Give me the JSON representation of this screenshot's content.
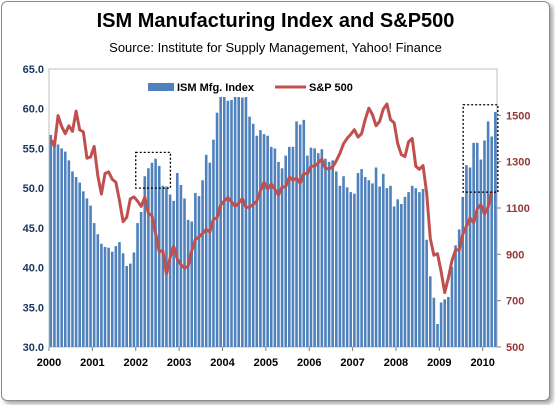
{
  "title": "ISM Manufacturing  Index and S&P500",
  "subtitle": "Source: Institute for Supply Management, Yahoo! Finance",
  "chart_data": {
    "type": "bar+line",
    "title": "ISM Manufacturing  Index and S&P500",
    "subtitle": "Source: Institute for Supply Management, Yahoo! Finance",
    "x_ticks": [
      "2000",
      "2001",
      "2002",
      "2003",
      "2004",
      "2005",
      "2006",
      "2007",
      "2008",
      "2009",
      "2010"
    ],
    "x_range": [
      2000.0,
      2010.33
    ],
    "y_left": {
      "range": [
        30,
        65
      ],
      "ticks": [
        "30.0",
        "35.0",
        "40.0",
        "45.0",
        "50.0",
        "55.0",
        "60.0",
        "65.0"
      ]
    },
    "y_right": {
      "range": [
        500,
        1700
      ],
      "ticks": [
        "500",
        "700",
        "900",
        "1100",
        "1300",
        "1500"
      ]
    },
    "legend": {
      "placement": "top",
      "entries": [
        "ISM Mfg. Index",
        "S&P 500"
      ]
    },
    "colors": {
      "bars": "#4f81bd",
      "line": "#c0504d",
      "left_axis_text": "#17375e",
      "right_axis_text": "#953735",
      "plot_border": "#bfbfbf"
    },
    "annotations": [
      {
        "type": "dashed-box",
        "x": [
          2002.0,
          2002.8
        ],
        "y_left": [
          50.0,
          54.5
        ]
      },
      {
        "type": "dashed-box",
        "x": [
          2009.55,
          2010.35
        ],
        "y_left": [
          49.5,
          60.5
        ]
      }
    ],
    "series": [
      {
        "name": "ISM Mfg. Index",
        "type": "bar",
        "axis": "left",
        "x_start": 2000.0,
        "x_step": 0.08333,
        "values": [
          56.7,
          56.1,
          55.5,
          55.0,
          54.6,
          53.5,
          52.1,
          51.4,
          50.7,
          49.6,
          48.7,
          47.8,
          45.6,
          44.2,
          43.0,
          42.6,
          42.5,
          42.0,
          42.7,
          43.2,
          41.8,
          40.2,
          40.5,
          41.9,
          45.6,
          47.0,
          51.5,
          52.5,
          53.2,
          53.7,
          52.8,
          50.3,
          50.2,
          49.2,
          48.4,
          51.9,
          50.4,
          48.7,
          46.0,
          45.8,
          49.4,
          49.0,
          51.0,
          54.2,
          53.2,
          56.1,
          59.5,
          62.5,
          62.0,
          61.0,
          61.1,
          62.0,
          61.5,
          61.4,
          61.6,
          59.0,
          58.1,
          56.6,
          57.3,
          56.8,
          56.6,
          55.2,
          55.0,
          53.3,
          52.5,
          54.1,
          55.2,
          55.2,
          58.4,
          58.0,
          58.6,
          54.1,
          55.1,
          55.0,
          54.4,
          54.9,
          53.7,
          53.3,
          53.5,
          52.1,
          50.3,
          51.5,
          50.1,
          49.5,
          49.3,
          51.9,
          52.4,
          51.4,
          51.0,
          50.6,
          52.6,
          50.2,
          51.8,
          50.0,
          50.3,
          47.7,
          48.6,
          48.0,
          48.9,
          49.5,
          50.3,
          50.0,
          49.5,
          49.9,
          43.5,
          38.9,
          36.2,
          32.9,
          35.6,
          36.0,
          36.3,
          40.1,
          42.8,
          44.8,
          48.9,
          52.9,
          52.6,
          55.7,
          55.7,
          53.6,
          56.0,
          58.4,
          56.5,
          59.6
        ]
      },
      {
        "name": "S&P 500",
        "type": "line",
        "axis": "right",
        "x_start": 2000.0,
        "x_step": 0.08333,
        "values": [
          1394,
          1366,
          1499,
          1452,
          1421,
          1455,
          1431,
          1518,
          1437,
          1429,
          1315,
          1320,
          1366,
          1240,
          1160,
          1249,
          1256,
          1224,
          1211,
          1133,
          1041,
          1060,
          1139,
          1148,
          1130,
          1107,
          1147,
          1077,
          1067,
          990,
          912,
          916,
          815,
          885,
          936,
          880,
          855,
          841,
          849,
          916,
          964,
          975,
          990,
          1008,
          996,
          1051,
          1058,
          1112,
          1131,
          1145,
          1126,
          1107,
          1121,
          1141,
          1102,
          1104,
          1115,
          1130,
          1174,
          1212,
          1181,
          1204,
          1181,
          1156,
          1191,
          1191,
          1234,
          1220,
          1229,
          1207,
          1249,
          1248,
          1280,
          1281,
          1295,
          1311,
          1270,
          1270,
          1277,
          1304,
          1336,
          1377,
          1401,
          1418,
          1438,
          1406,
          1421,
          1482,
          1531,
          1503,
          1455,
          1474,
          1527,
          1549,
          1481,
          1468,
          1378,
          1330,
          1322,
          1386,
          1400,
          1280,
          1267,
          1283,
          1165,
          969,
          896,
          903,
          826,
          735,
          798,
          873,
          919,
          919,
          987,
          1021,
          1057,
          1036,
          1096,
          1115,
          1074,
          1104,
          1169
        ]
      }
    ]
  }
}
